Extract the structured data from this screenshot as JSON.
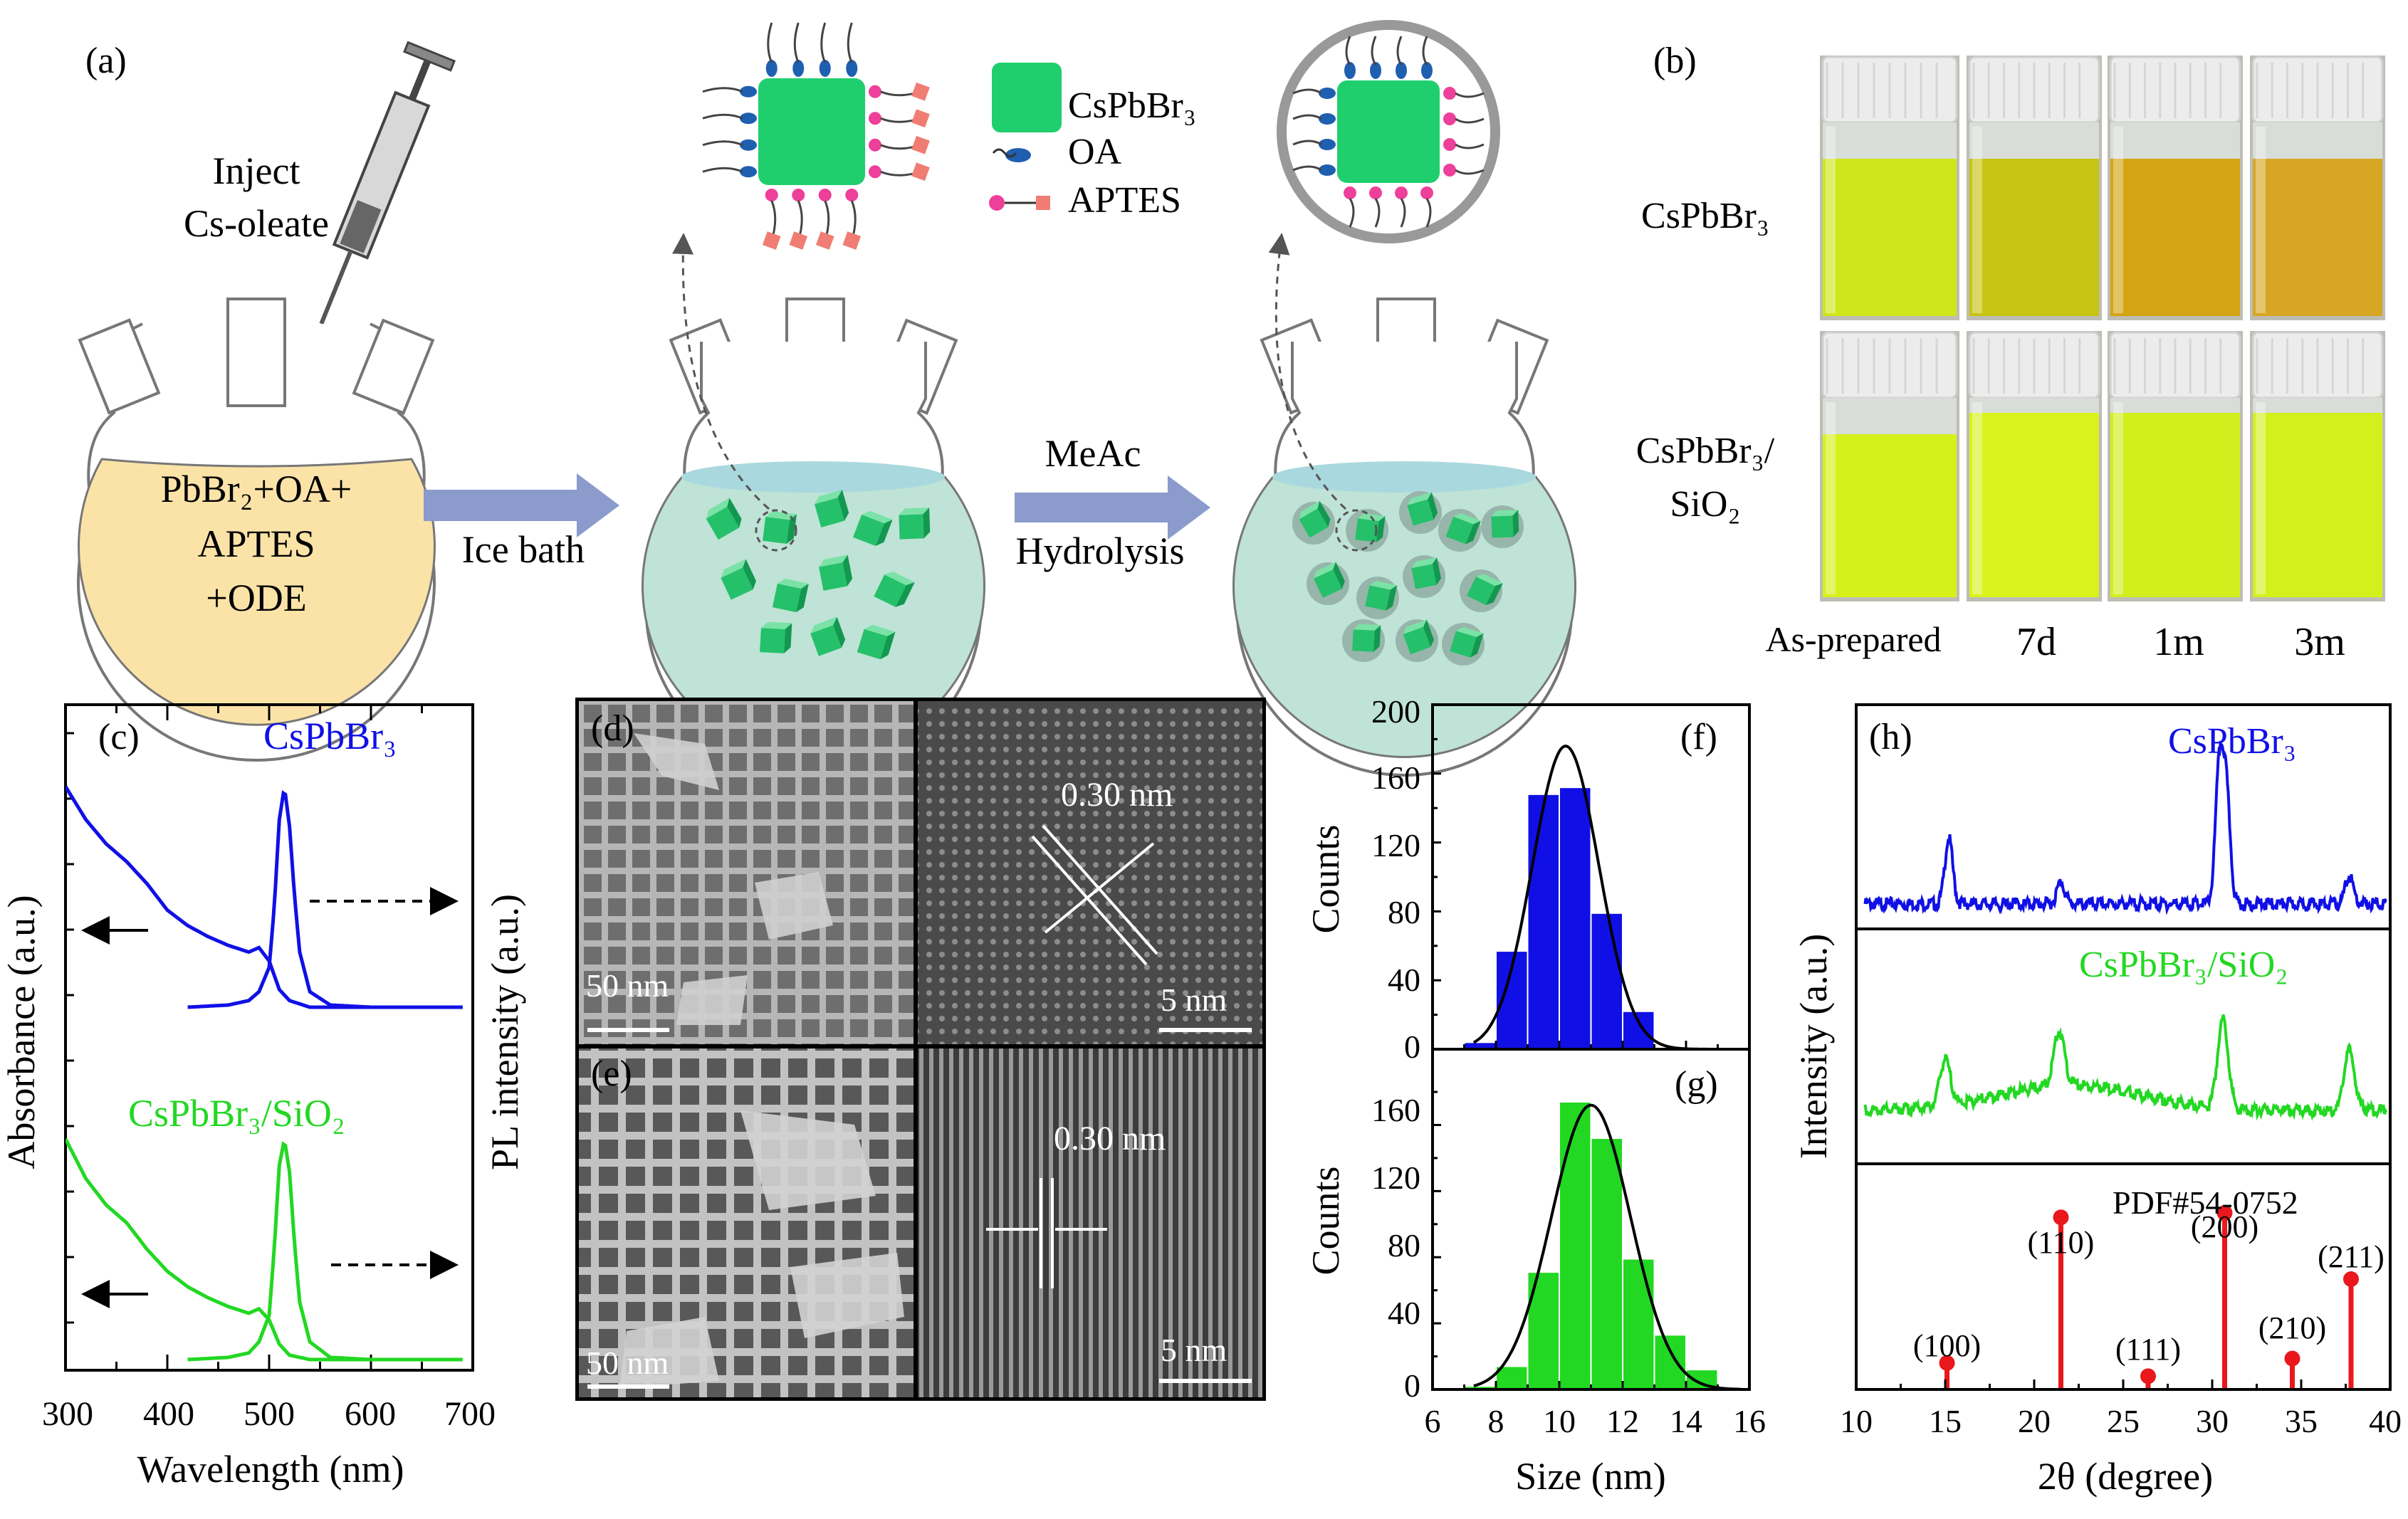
{
  "colors": {
    "blue": "#1010e6",
    "green": "#22d822",
    "red": "#e8181c",
    "arrow": "#8a9bcc",
    "cube": "#1fcf6e",
    "oa": "#1f5fb0",
    "aptes_head": "#ee3f9a",
    "aptes_end": "#f07d73",
    "flask_fill": "#fbe3a8",
    "solution": "#bfe3d6"
  },
  "panel_a": {
    "label": "(a)",
    "inject_line1": "Inject",
    "inject_line2": "Cs-oleate",
    "flask_line1": "PbBr₂+OA+",
    "flask_line2": "APTES",
    "flask_line3": "+ODE",
    "arrow1_label": "Ice bath",
    "arrow2_top": "MeAc",
    "arrow2_bottom": "Hydrolysis",
    "legend": [
      {
        "label": "CsPbBr₃"
      },
      {
        "label": "OA"
      },
      {
        "label": "APTES"
      }
    ]
  },
  "panel_b": {
    "label": "(b)",
    "row_labels": [
      "CsPbBr₃",
      "CsPbBr₃/",
      "SiO₂"
    ],
    "columns": [
      "As-prepared",
      "7d",
      "1m",
      "3m"
    ],
    "row1_liquid": [
      "#cfe61a",
      "#c8c414",
      "#d4a414",
      "#d7a624"
    ],
    "row2_liquid": [
      "#d6f01a",
      "#d9f21c",
      "#d2ee1c",
      "#d4f01c"
    ]
  },
  "panel_c": {
    "label": "(c)",
    "series_top": "CsPbBr₃",
    "series_bottom": "CsPbBr₃/SiO₂",
    "ylabel_left": "Absorbance (a.u.)",
    "ylabel_right": "PL intensity (a.u.)",
    "xlabel": "Wavelength (nm)",
    "x_ticks": [
      "300",
      "400",
      "500",
      "600",
      "700"
    ]
  },
  "panel_de": {
    "label_d": "(d)",
    "label_e": "(e)",
    "scale_low": "50 nm",
    "scale_high": "5 nm",
    "lattice": "0.30 nm"
  },
  "panel_fg": {
    "label_f": "(f)",
    "label_g": "(g)",
    "ylabel": "Counts",
    "xlabel": "Size (nm)",
    "f_yticks": [
      "0",
      "40",
      "80",
      "120",
      "160",
      "200"
    ],
    "g_yticks": [
      "0",
      "40",
      "80",
      "120",
      "160"
    ],
    "x_ticks": [
      "6",
      "8",
      "10",
      "12",
      "14",
      "16"
    ]
  },
  "panel_h": {
    "label": "(h)",
    "series1": "CsPbBr₃",
    "series2": "CsPbBr₃/SiO₂",
    "ref": "PDF#54-0752",
    "ylabel": "Intensity (a.u.)",
    "xlabel": "2θ (degree)",
    "x_ticks": [
      "10",
      "15",
      "20",
      "25",
      "30",
      "35",
      "40"
    ]
  },
  "chart_data": [
    {
      "id": "c",
      "type": "line",
      "title": "",
      "xlabel": "Wavelength (nm)",
      "ylabel": "Absorbance (a.u.) / PL intensity (a.u.)",
      "xlim": [
        300,
        700
      ],
      "series": [
        {
          "name": "CsPbBr₃ absorbance",
          "x": [
            300,
            320,
            340,
            360,
            380,
            400,
            420,
            440,
            460,
            480,
            490,
            500,
            510,
            520,
            540
          ],
          "y": [
            1.0,
            0.85,
            0.74,
            0.66,
            0.56,
            0.44,
            0.37,
            0.32,
            0.28,
            0.25,
            0.27,
            0.21,
            0.08,
            0.03,
            0.0
          ]
        },
        {
          "name": "CsPbBr₃ PL",
          "x": [
            420,
            460,
            480,
            490,
            500,
            505,
            510,
            515,
            520,
            525,
            530,
            540,
            560,
            600,
            690
          ],
          "y": [
            0.0,
            0.01,
            0.03,
            0.07,
            0.18,
            0.45,
            0.85,
            1.0,
            0.82,
            0.5,
            0.25,
            0.07,
            0.01,
            0.0,
            0.0
          ]
        },
        {
          "name": "CsPbBr₃/SiO₂ absorbance",
          "x": [
            300,
            320,
            340,
            360,
            380,
            400,
            420,
            440,
            460,
            480,
            490,
            500,
            510,
            520,
            540
          ],
          "y": [
            1.0,
            0.82,
            0.7,
            0.62,
            0.5,
            0.4,
            0.33,
            0.28,
            0.24,
            0.21,
            0.23,
            0.18,
            0.07,
            0.02,
            0.0
          ]
        },
        {
          "name": "CsPbBr₃/SiO₂ PL",
          "x": [
            420,
            460,
            480,
            490,
            500,
            505,
            510,
            515,
            520,
            525,
            530,
            540,
            560,
            600,
            690
          ],
          "y": [
            0.0,
            0.01,
            0.03,
            0.08,
            0.2,
            0.5,
            0.88,
            1.0,
            0.85,
            0.52,
            0.26,
            0.08,
            0.01,
            0.0,
            0.0
          ]
        }
      ]
    },
    {
      "id": "f",
      "type": "bar",
      "series_name": "CsPbBr₃",
      "xlabel": "Size (nm)",
      "ylabel": "Counts",
      "xlim": [
        6,
        16
      ],
      "ylim": [
        0,
        200
      ],
      "categories": [
        7.5,
        8.5,
        9.5,
        10.5,
        11.5,
        12.5
      ],
      "values": [
        4,
        57,
        148,
        152,
        79,
        22
      ],
      "fit": {
        "type": "gaussian",
        "center": 10.2,
        "sigma": 1.05,
        "peak": 176
      }
    },
    {
      "id": "g",
      "type": "bar",
      "series_name": "CsPbBr₃/SiO₂",
      "xlabel": "Size (nm)",
      "ylabel": "Counts",
      "xlim": [
        6,
        16
      ],
      "ylim": [
        0,
        180
      ],
      "categories": [
        7.5,
        8.5,
        9.5,
        10.5,
        11.5,
        12.5,
        13.5,
        14.5
      ],
      "values": [
        2,
        14,
        71,
        174,
        152,
        79,
        33,
        12
      ],
      "fit": {
        "type": "gaussian",
        "center": 11.0,
        "sigma": 1.25,
        "peak": 172
      }
    },
    {
      "id": "h",
      "type": "line",
      "xlabel": "2θ (degree)",
      "ylabel": "Intensity (a.u.)",
      "xlim": [
        10,
        40
      ],
      "series": [
        {
          "name": "CsPbBr₃",
          "peaks": [
            {
              "x": 15.2,
              "h": 0.42
            },
            {
              "x": 21.5,
              "h": 0.14
            },
            {
              "x": 30.4,
              "h": 0.85
            },
            {
              "x": 30.8,
              "h": 0.68
            },
            {
              "x": 37.7,
              "h": 0.18
            }
          ]
        },
        {
          "name": "CsPbBr₃/SiO₂",
          "peaks": [
            {
              "x": 15.0,
              "h": 0.32
            },
            {
              "x": 21.4,
              "h": 0.38
            },
            {
              "x": 30.6,
              "h": 0.62
            },
            {
              "x": 37.7,
              "h": 0.42
            }
          ]
        },
        {
          "name": "PDF#54-0752",
          "type": "stick",
          "x": [
            15.1,
            21.5,
            26.4,
            30.7,
            34.5,
            37.8
          ],
          "h": [
            0.12,
            0.78,
            0.06,
            0.8,
            0.14,
            0.5
          ],
          "labels": [
            "(100)",
            "(110)",
            "(111)",
            "(200)",
            "(210)",
            "(211)"
          ]
        }
      ]
    }
  ]
}
